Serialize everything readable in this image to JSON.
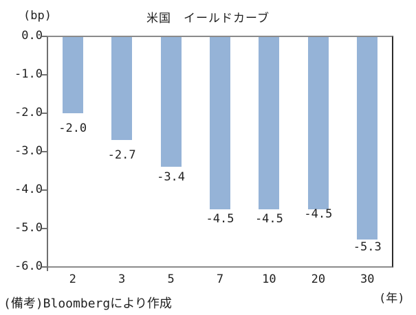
{
  "chart_data": {
    "type": "bar",
    "title": "米国　イールドカーブ",
    "ylabel": "(bp)",
    "xlabel": "(年)",
    "categories": [
      "2",
      "3",
      "5",
      "7",
      "10",
      "20",
      "30"
    ],
    "values": [
      -2.0,
      -2.7,
      -3.4,
      -4.5,
      -4.5,
      -4.5,
      -5.3
    ],
    "data_labels": [
      "-2.0",
      "-2.7",
      "-3.4",
      "-4.5",
      "-4.5",
      "-4.5",
      "-5.3"
    ],
    "ylim": [
      -6.0,
      0.0
    ],
    "ytick_labels": [
      "0.0",
      "-1.0",
      "-2.0",
      "-3.0",
      "-4.0",
      "-5.0",
      "-6.0"
    ],
    "grid": false,
    "legend_position": "none",
    "bar_color": "#95B3D7",
    "source_note": "(備考)Bloombergにより作成"
  }
}
